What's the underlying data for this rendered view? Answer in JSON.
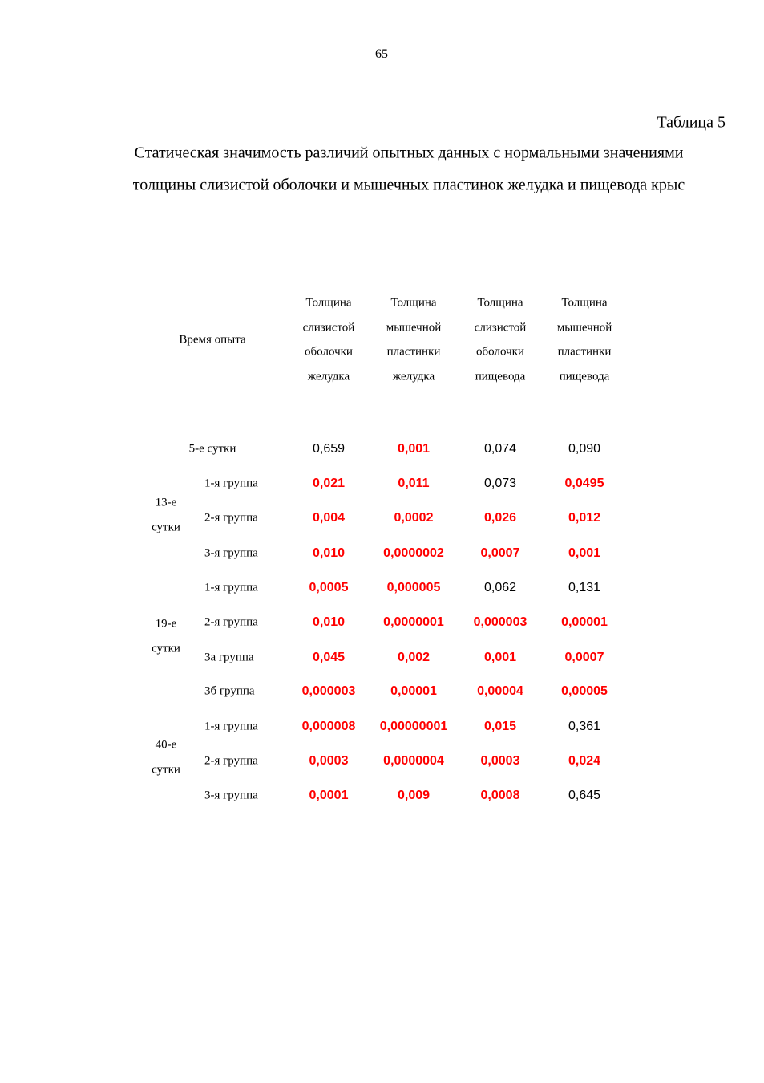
{
  "page_number": "65",
  "table_label": "Таблица 5",
  "caption": [
    "Статическая значимость различий опытных данных с нормальными значениями",
    "толщины слизистой оболочки и мышечных пластинок желудка и пищевода крыс"
  ],
  "table": {
    "highlight_color": "#ff0000",
    "header": {
      "time": "Время опыта",
      "columns": [
        [
          "Толщина",
          "слизистой",
          "оболочки",
          "желудка"
        ],
        [
          "Толщина",
          "мышечной",
          "пластинки",
          "желудка"
        ],
        [
          "Толщина",
          "слизистой",
          "оболочки",
          "пищевода"
        ],
        [
          "Толщина",
          "мышечной",
          "пластинки",
          "пищевода"
        ]
      ]
    },
    "first_row": {
      "label": "5-е сутки",
      "cells": [
        {
          "text": "0,659",
          "highlight": false
        },
        {
          "text": "0,001",
          "highlight": true
        },
        {
          "text": "0,074",
          "highlight": false
        },
        {
          "text": "0,090",
          "highlight": false
        }
      ]
    },
    "groups": [
      {
        "day": [
          "13-е",
          "сутки"
        ],
        "rows": [
          {
            "label": "1-я группа",
            "cells": [
              {
                "text": "0,021",
                "highlight": true
              },
              {
                "text": "0,011",
                "highlight": true
              },
              {
                "text": "0,073",
                "highlight": false
              },
              {
                "text": "0,0495",
                "highlight": true
              }
            ]
          },
          {
            "label": "2-я группа",
            "cells": [
              {
                "text": "0,004",
                "highlight": true
              },
              {
                "text": "0,0002",
                "highlight": true
              },
              {
                "text": "0,026",
                "highlight": true
              },
              {
                "text": "0,012",
                "highlight": true
              }
            ]
          },
          {
            "label": "3-я группа",
            "cells": [
              {
                "text": "0,010",
                "highlight": true
              },
              {
                "text": "0,0000002",
                "highlight": true
              },
              {
                "text": "0,0007",
                "highlight": true
              },
              {
                "text": "0,001",
                "highlight": true
              }
            ]
          }
        ]
      },
      {
        "day": [
          "19-е",
          "сутки"
        ],
        "rows": [
          {
            "label": "1-я группа",
            "cells": [
              {
                "text": "0,0005",
                "highlight": true
              },
              {
                "text": "0,000005",
                "highlight": true
              },
              {
                "text": "0,062",
                "highlight": false
              },
              {
                "text": "0,131",
                "highlight": false
              }
            ]
          },
          {
            "label": "2-я группа",
            "cells": [
              {
                "text": "0,010",
                "highlight": true
              },
              {
                "text": "0,0000001",
                "highlight": true
              },
              {
                "text": "0,000003",
                "highlight": true
              },
              {
                "text": "0,00001",
                "highlight": true
              }
            ]
          },
          {
            "label": "3а группа",
            "cells": [
              {
                "text": "0,045",
                "highlight": true
              },
              {
                "text": "0,002",
                "highlight": true
              },
              {
                "text": "0,001",
                "highlight": true
              },
              {
                "text": "0,0007",
                "highlight": true
              }
            ]
          },
          {
            "label": "3б группа",
            "cells": [
              {
                "text": "0,000003",
                "highlight": true
              },
              {
                "text": "0,00001",
                "highlight": true
              },
              {
                "text": "0,00004",
                "highlight": true
              },
              {
                "text": "0,00005",
                "highlight": true
              }
            ]
          }
        ]
      },
      {
        "day": [
          "40-е",
          "сутки"
        ],
        "rows": [
          {
            "label": "1-я группа",
            "cells": [
              {
                "text": "0,000008",
                "highlight": true
              },
              {
                "text": "0,00000001",
                "highlight": true
              },
              {
                "text": "0,015",
                "highlight": true
              },
              {
                "text": "0,361",
                "highlight": false
              }
            ]
          },
          {
            "label": "2-я группа",
            "cells": [
              {
                "text": "0,0003",
                "highlight": true
              },
              {
                "text": "0,0000004",
                "highlight": true
              },
              {
                "text": "0,0003",
                "highlight": true
              },
              {
                "text": "0,024",
                "highlight": true
              }
            ]
          },
          {
            "label": "3-я группа",
            "cells": [
              {
                "text": "0,0001",
                "highlight": true
              },
              {
                "text": "0,009",
                "highlight": true
              },
              {
                "text": "0,0008",
                "highlight": true
              },
              {
                "text": "0,645",
                "highlight": false
              }
            ]
          }
        ]
      }
    ]
  }
}
